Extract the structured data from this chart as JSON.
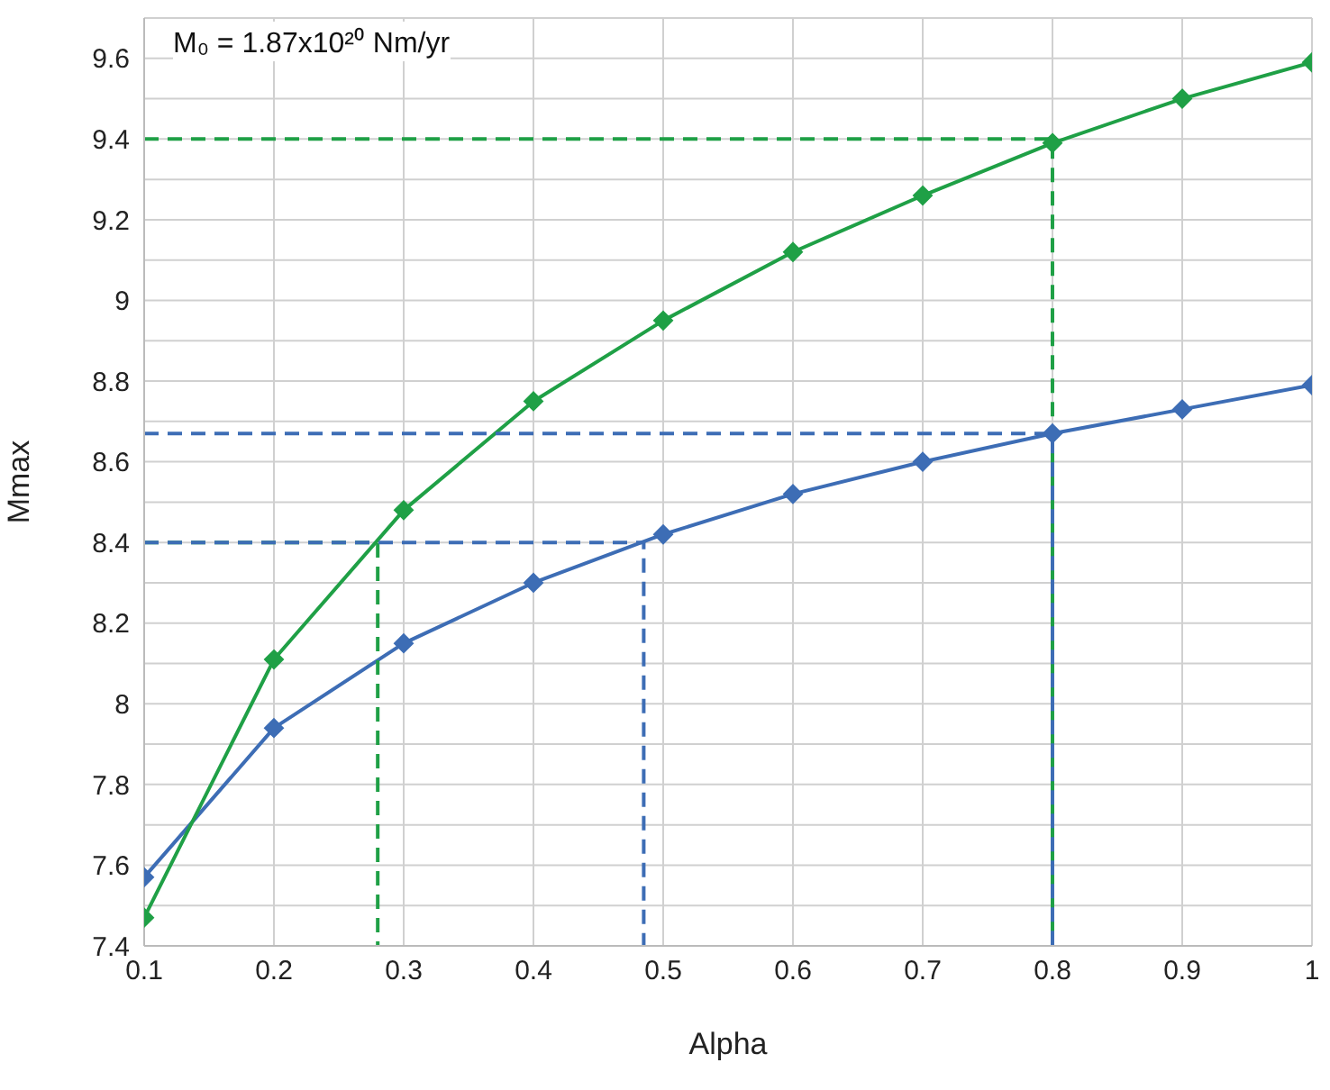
{
  "chart_data": {
    "type": "line",
    "xlabel": "Alpha",
    "ylabel": "Mmax",
    "annotations": [
      "M₀ = 1.87x10²⁰ Nm/yr"
    ],
    "x": [
      0.1,
      0.2,
      0.3,
      0.4,
      0.5,
      0.6,
      0.7,
      0.8,
      0.9,
      1
    ],
    "series": [
      {
        "color": "#3d6db5",
        "values": [
          7.57,
          7.94,
          8.15,
          8.3,
          8.42,
          8.52,
          8.6,
          8.67,
          8.73,
          8.79
        ],
        "marker": "diamond",
        "line_style": "solid"
      },
      {
        "color": "#1fa046",
        "values": [
          7.47,
          8.11,
          8.48,
          8.75,
          8.95,
          9.12,
          9.26,
          9.39,
          9.5,
          9.59
        ],
        "marker": "diamond",
        "line_style": "solid"
      },
      {
        "color": "#1fa046",
        "x": [
          0.1,
          0.8,
          0.8
        ],
        "values": [
          9.4,
          9.4,
          7.4
        ],
        "marker": "none",
        "line_style": "dashed"
      },
      {
        "color": "#1fa046",
        "x": [
          0.1,
          0.28,
          0.28
        ],
        "values": [
          8.4,
          8.4,
          7.4
        ],
        "marker": "none",
        "line_style": "dashed"
      },
      {
        "color": "#3d6db5",
        "x": [
          0.1,
          0.485,
          0.485
        ],
        "values": [
          8.4,
          8.4,
          7.4
        ],
        "marker": "none",
        "line_style": "dashed"
      },
      {
        "color": "#3d6db5",
        "x": [
          0.1,
          0.8,
          0.8
        ],
        "values": [
          8.67,
          8.67,
          7.4
        ],
        "marker": "none",
        "line_style": "dashed"
      }
    ],
    "xlim": [
      0.1,
      1
    ],
    "xticks": [
      0.1,
      0.2,
      0.3,
      0.4,
      0.5,
      0.6,
      0.7,
      0.8,
      0.9,
      1
    ],
    "ylim": [
      7.4,
      9.7
    ],
    "yticks": [
      7.4,
      {
        "value": 7.5,
        "label": null
      },
      7.6,
      {
        "value": 7.7,
        "label": null
      },
      7.8,
      {
        "value": 7.9,
        "label": null
      },
      8,
      {
        "value": 8.1,
        "label": null
      },
      8.2,
      {
        "value": 8.3,
        "label": null
      },
      8.4,
      {
        "value": 8.5,
        "label": null
      },
      8.6,
      {
        "value": 8.7,
        "label": null
      },
      8.8,
      {
        "value": 8.9,
        "label": null
      },
      9,
      {
        "value": 9.1,
        "label": null
      },
      9.2,
      {
        "value": 9.3,
        "label": null
      },
      9.4,
      {
        "value": 9.5,
        "label": null
      },
      9.6,
      {
        "value": 9.7,
        "label": null
      }
    ],
    "grid": true
  }
}
